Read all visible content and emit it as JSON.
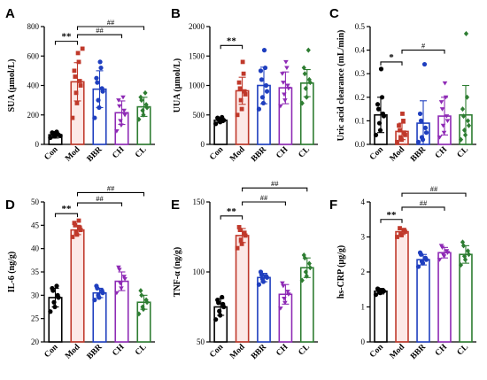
{
  "chart_data": [
    {
      "panel": "A",
      "type": "bar",
      "ylabel": "SUA (μmol/L)",
      "ylim": [
        0,
        800
      ],
      "yticks": [
        0,
        200,
        400,
        600,
        800
      ],
      "categories": [
        "Con",
        "Mod",
        "BBR",
        "CH",
        "CL"
      ],
      "colors": [
        "#000000",
        "#c0392b",
        "#1f3fbf",
        "#8e2ab5",
        "#2e7d32"
      ],
      "values": [
        65,
        425,
        375,
        215,
        255
      ],
      "errors": [
        22,
        130,
        125,
        80,
        65
      ],
      "points": [
        [
          45,
          55,
          60,
          65,
          70,
          75,
          80,
          85,
          62,
          58
        ],
        [
          180,
          280,
          350,
          400,
          430,
          460,
          500,
          560,
          620,
          650
        ],
        [
          180,
          250,
          300,
          360,
          380,
          420,
          450,
          520,
          560
        ],
        [
          90,
          130,
          160,
          200,
          230,
          260,
          300,
          320
        ],
        [
          170,
          200,
          230,
          250,
          270,
          300,
          320,
          350
        ]
      ],
      "annotations": [
        {
          "from": 0,
          "to": 1,
          "y": 700,
          "text": "**"
        },
        {
          "from": 1,
          "to": 4,
          "y": 800,
          "text": "##"
        },
        {
          "from": 1,
          "to": 3,
          "y": 745,
          "text": "##"
        }
      ]
    },
    {
      "panel": "B",
      "type": "bar",
      "ylabel": "UUA (μmol/L)",
      "ylim": [
        0,
        2000
      ],
      "yticks": [
        0,
        500,
        1000,
        1500,
        2000
      ],
      "categories": [
        "Con",
        "Mod",
        "BBR",
        "CH",
        "CL"
      ],
      "colors": [
        "#000000",
        "#c0392b",
        "#1f3fbf",
        "#8e2ab5",
        "#2e7d32"
      ],
      "values": [
        410,
        910,
        1000,
        960,
        1040
      ],
      "errors": [
        40,
        230,
        310,
        270,
        230
      ],
      "points": [
        [
          350,
          380,
          400,
          410,
          420,
          430,
          450,
          460
        ],
        [
          500,
          600,
          750,
          850,
          900,
          950,
          1050,
          1200,
          1400
        ],
        [
          600,
          700,
          800,
          900,
          1000,
          1100,
          1250,
          1300,
          1600
        ],
        [
          650,
          750,
          850,
          950,
          1000,
          1050,
          1200,
          1300,
          1400
        ],
        [
          700,
          800,
          950,
          1050,
          1100,
          1200,
          1300,
          1600
        ]
      ],
      "annotations": [
        {
          "from": 0,
          "to": 1,
          "y": 1680,
          "text": "**"
        }
      ]
    },
    {
      "panel": "C",
      "type": "bar",
      "ylabel": "Uric acid clearance (mL/min)",
      "ylim": [
        0,
        0.5
      ],
      "yticks": [
        0.0,
        0.1,
        0.2,
        0.3,
        0.4,
        0.5
      ],
      "categories": [
        "Con",
        "Mod",
        "BBR",
        "CH",
        "CL"
      ],
      "colors": [
        "#000000",
        "#c0392b",
        "#1f3fbf",
        "#8e2ab5",
        "#2e7d32"
      ],
      "values": [
        0.125,
        0.055,
        0.09,
        0.12,
        0.125
      ],
      "errors": [
        0.075,
        0.035,
        0.095,
        0.08,
        0.125
      ],
      "points": [
        [
          0.04,
          0.06,
          0.09,
          0.12,
          0.13,
          0.15,
          0.17,
          0.2,
          0.32
        ],
        [
          0.01,
          0.02,
          0.03,
          0.04,
          0.05,
          0.06,
          0.08,
          0.1,
          0.13
        ],
        [
          0.01,
          0.02,
          0.03,
          0.05,
          0.07,
          0.1,
          0.13,
          0.34
        ],
        [
          0.03,
          0.05,
          0.08,
          0.1,
          0.12,
          0.15,
          0.18,
          0.2,
          0.26
        ],
        [
          0.02,
          0.04,
          0.06,
          0.08,
          0.1,
          0.12,
          0.15,
          0.2,
          0.47
        ]
      ],
      "annotations": [
        {
          "from": 0,
          "to": 1,
          "y": 0.35,
          "text": "*"
        },
        {
          "from": 1,
          "to": 3,
          "y": 0.4,
          "text": "#"
        }
      ]
    },
    {
      "panel": "D",
      "type": "bar",
      "ylabel": "IL-6 (ng/g)",
      "ylim": [
        20,
        50
      ],
      "yticks": [
        20,
        25,
        30,
        35,
        40,
        45,
        50
      ],
      "categories": [
        "Con",
        "Mod",
        "BBR",
        "CH",
        "CL"
      ],
      "colors": [
        "#000000",
        "#c0392b",
        "#1f3fbf",
        "#8e2ab5",
        "#2e7d32"
      ],
      "values": [
        29.5,
        44.0,
        30.5,
        33.0,
        28.5
      ],
      "errors": [
        2.0,
        1.0,
        1.0,
        2.0,
        1.5
      ],
      "points": [
        [
          26.5,
          27.5,
          28.5,
          29.5,
          30.0,
          31.0,
          31.5,
          32.0
        ],
        [
          42.5,
          43.0,
          43.5,
          44.0,
          44.5,
          45.0,
          45.5,
          46.0
        ],
        [
          29.0,
          29.5,
          30.0,
          30.5,
          31.0,
          31.5,
          32.0
        ],
        [
          30.5,
          31.5,
          32.5,
          33.5,
          34.0,
          35.5,
          36.0
        ],
        [
          26.0,
          27.0,
          27.5,
          28.5,
          29.0,
          30.0,
          31.0
        ]
      ],
      "annotations": [
        {
          "from": 0,
          "to": 1,
          "y": 47.5,
          "text": "**"
        },
        {
          "from": 1,
          "to": 4,
          "y": 52.0,
          "text": "##"
        },
        {
          "from": 1,
          "to": 3,
          "y": 49.8,
          "text": "##"
        }
      ]
    },
    {
      "panel": "E",
      "type": "bar",
      "ylabel": "TNF-α (ng/g)",
      "ylim": [
        50,
        150
      ],
      "yticks": [
        50,
        100,
        150
      ],
      "categories": [
        "Con",
        "Mod",
        "BBR",
        "CH",
        "CL"
      ],
      "colors": [
        "#000000",
        "#c0392b",
        "#1f3fbf",
        "#8e2ab5",
        "#2e7d32"
      ],
      "values": [
        75,
        126,
        96,
        84,
        103
      ],
      "errors": [
        6,
        5,
        3,
        7,
        7
      ],
      "points": [
        [
          66,
          69,
          72,
          75,
          77,
          78,
          80,
          82
        ],
        [
          117,
          120,
          123,
          126,
          128,
          130,
          132
        ],
        [
          91,
          93,
          95,
          96,
          97,
          98,
          100
        ],
        [
          74,
          78,
          81,
          84,
          86,
          90,
          92
        ],
        [
          94,
          97,
          100,
          103,
          106,
          110,
          112
        ]
      ],
      "annotations": [
        {
          "from": 0,
          "to": 1,
          "y": 140,
          "text": "**"
        },
        {
          "from": 1,
          "to": 4,
          "y": 160,
          "text": "##"
        },
        {
          "from": 1,
          "to": 3,
          "y": 150,
          "text": "##"
        }
      ]
    },
    {
      "panel": "F",
      "type": "bar",
      "ylabel": "hs-CRP (μg/g)",
      "ylim": [
        0,
        4
      ],
      "yticks": [
        0,
        1,
        2,
        3,
        4
      ],
      "categories": [
        "Con",
        "Mod",
        "BBR",
        "CH",
        "CL"
      ],
      "colors": [
        "#000000",
        "#c0392b",
        "#1f3fbf",
        "#8e2ab5",
        "#2e7d32"
      ],
      "values": [
        1.45,
        3.15,
        2.35,
        2.55,
        2.5
      ],
      "errors": [
        0.08,
        0.08,
        0.15,
        0.15,
        0.25
      ],
      "points": [
        [
          1.35,
          1.4,
          1.42,
          1.45,
          1.48,
          1.5,
          1.52
        ],
        [
          3.0,
          3.05,
          3.1,
          3.15,
          3.2,
          3.25
        ],
        [
          2.15,
          2.25,
          2.3,
          2.35,
          2.4,
          2.5,
          2.55
        ],
        [
          2.35,
          2.45,
          2.5,
          2.55,
          2.6,
          2.7,
          2.75
        ],
        [
          2.2,
          2.35,
          2.45,
          2.5,
          2.6,
          2.75,
          2.85
        ]
      ],
      "annotations": [
        {
          "from": 0,
          "to": 1,
          "y": 3.5,
          "text": "**"
        },
        {
          "from": 1,
          "to": 4,
          "y": 4.25,
          "text": "##"
        },
        {
          "from": 1,
          "to": 3,
          "y": 3.85,
          "text": "##"
        }
      ]
    }
  ]
}
